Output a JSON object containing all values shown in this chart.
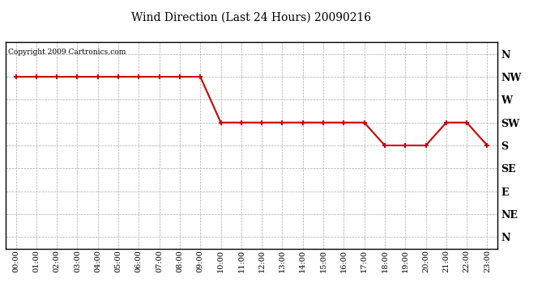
{
  "title": "Wind Direction (Last 24 Hours) 20090216",
  "copyright_text": "Copyright 2009 Cartronics.com",
  "line_color": "#cc0000",
  "background_color": "#ffffff",
  "plot_bg_color": "#ffffff",
  "grid_color": "#aaaaaa",
  "x_labels": [
    "00:00",
    "01:00",
    "02:00",
    "03:00",
    "04:00",
    "05:00",
    "06:00",
    "07:00",
    "08:00",
    "09:00",
    "10:00",
    "11:00",
    "12:00",
    "13:00",
    "14:00",
    "15:00",
    "16:00",
    "17:00",
    "18:00",
    "19:00",
    "20:00",
    "21:00",
    "22:00",
    "23:00"
  ],
  "y_labels": [
    "N",
    "NW",
    "W",
    "SW",
    "S",
    "SE",
    "E",
    "NE",
    "N"
  ],
  "y_tick_positions": [
    8,
    7,
    6,
    5,
    4,
    3,
    2,
    1,
    0
  ],
  "wind_data": [
    [
      0,
      7
    ],
    [
      1,
      7
    ],
    [
      2,
      7
    ],
    [
      3,
      7
    ],
    [
      4,
      7
    ],
    [
      5,
      7
    ],
    [
      6,
      7
    ],
    [
      7,
      7
    ],
    [
      8,
      7
    ],
    [
      9,
      7
    ],
    [
      10,
      5
    ],
    [
      11,
      5
    ],
    [
      12,
      5
    ],
    [
      13,
      5
    ],
    [
      14,
      5
    ],
    [
      15,
      5
    ],
    [
      16,
      5
    ],
    [
      17,
      5
    ],
    [
      18,
      4
    ],
    [
      19,
      4
    ],
    [
      20,
      4
    ],
    [
      21,
      5
    ],
    [
      22,
      5
    ],
    [
      23,
      4
    ]
  ]
}
